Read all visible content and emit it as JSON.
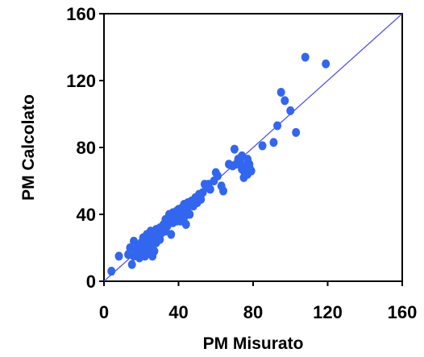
{
  "chart_data": {
    "type": "scatter",
    "title": "",
    "xlabel": "PM Misurato",
    "ylabel": "PM Calcolato",
    "xlim": [
      0,
      160
    ],
    "ylim": [
      0,
      160
    ],
    "x_ticks": [
      "0",
      "40",
      "80",
      "120",
      "160"
    ],
    "y_ticks": [
      "0",
      "40",
      "80",
      "120",
      "160"
    ],
    "x_tick_values": [
      0,
      40,
      80,
      120,
      160
    ],
    "y_tick_values": [
      0,
      40,
      80,
      120,
      160
    ],
    "grid": false,
    "legend": "none",
    "marker_color": "#3366ee",
    "reference_line": {
      "type": "y=x",
      "color": "#5555ee"
    },
    "points": [
      {
        "x": 4,
        "y": 6
      },
      {
        "x": 8,
        "y": 15
      },
      {
        "x": 13,
        "y": 16
      },
      {
        "x": 14,
        "y": 20
      },
      {
        "x": 15,
        "y": 10
      },
      {
        "x": 16,
        "y": 15
      },
      {
        "x": 16,
        "y": 24
      },
      {
        "x": 17,
        "y": 18
      },
      {
        "x": 18,
        "y": 20
      },
      {
        "x": 19,
        "y": 14
      },
      {
        "x": 20,
        "y": 17
      },
      {
        "x": 20,
        "y": 23
      },
      {
        "x": 21,
        "y": 20
      },
      {
        "x": 21,
        "y": 26
      },
      {
        "x": 22,
        "y": 15
      },
      {
        "x": 22,
        "y": 22
      },
      {
        "x": 23,
        "y": 18
      },
      {
        "x": 23,
        "y": 28
      },
      {
        "x": 24,
        "y": 24
      },
      {
        "x": 24,
        "y": 19
      },
      {
        "x": 25,
        "y": 21
      },
      {
        "x": 25,
        "y": 30
      },
      {
        "x": 26,
        "y": 15
      },
      {
        "x": 26,
        "y": 26
      },
      {
        "x": 27,
        "y": 18
      },
      {
        "x": 27,
        "y": 29
      },
      {
        "x": 28,
        "y": 23
      },
      {
        "x": 28,
        "y": 31
      },
      {
        "x": 29,
        "y": 27
      },
      {
        "x": 30,
        "y": 25
      },
      {
        "x": 30,
        "y": 32
      },
      {
        "x": 31,
        "y": 29
      },
      {
        "x": 32,
        "y": 34
      },
      {
        "x": 33,
        "y": 30
      },
      {
        "x": 33,
        "y": 37
      },
      {
        "x": 34,
        "y": 33
      },
      {
        "x": 35,
        "y": 36
      },
      {
        "x": 35,
        "y": 40
      },
      {
        "x": 36,
        "y": 28
      },
      {
        "x": 36,
        "y": 38
      },
      {
        "x": 37,
        "y": 35
      },
      {
        "x": 37,
        "y": 41
      },
      {
        "x": 38,
        "y": 39
      },
      {
        "x": 39,
        "y": 36
      },
      {
        "x": 39,
        "y": 42
      },
      {
        "x": 40,
        "y": 38
      },
      {
        "x": 40,
        "y": 43
      },
      {
        "x": 41,
        "y": 40
      },
      {
        "x": 41,
        "y": 36
      },
      {
        "x": 42,
        "y": 44
      },
      {
        "x": 42,
        "y": 41
      },
      {
        "x": 43,
        "y": 38
      },
      {
        "x": 43,
        "y": 46
      },
      {
        "x": 44,
        "y": 42
      },
      {
        "x": 44,
        "y": 34
      },
      {
        "x": 45,
        "y": 47
      },
      {
        "x": 45,
        "y": 44
      },
      {
        "x": 46,
        "y": 40
      },
      {
        "x": 47,
        "y": 48
      },
      {
        "x": 48,
        "y": 45
      },
      {
        "x": 49,
        "y": 50
      },
      {
        "x": 50,
        "y": 47
      },
      {
        "x": 51,
        "y": 52
      },
      {
        "x": 52,
        "y": 49
      },
      {
        "x": 53,
        "y": 53
      },
      {
        "x": 54,
        "y": 58
      },
      {
        "x": 55,
        "y": 56
      },
      {
        "x": 56,
        "y": 58
      },
      {
        "x": 57,
        "y": 55
      },
      {
        "x": 59,
        "y": 60
      },
      {
        "x": 60,
        "y": 65
      },
      {
        "x": 61,
        "y": 63
      },
      {
        "x": 63,
        "y": 57
      },
      {
        "x": 64,
        "y": 54
      },
      {
        "x": 67,
        "y": 70
      },
      {
        "x": 69,
        "y": 69
      },
      {
        "x": 70,
        "y": 79
      },
      {
        "x": 71,
        "y": 70
      },
      {
        "x": 72,
        "y": 73
      },
      {
        "x": 73,
        "y": 71
      },
      {
        "x": 74,
        "y": 75
      },
      {
        "x": 74,
        "y": 67
      },
      {
        "x": 75,
        "y": 62
      },
      {
        "x": 75,
        "y": 66
      },
      {
        "x": 76,
        "y": 69
      },
      {
        "x": 77,
        "y": 73
      },
      {
        "x": 77,
        "y": 64
      },
      {
        "x": 78,
        "y": 70
      },
      {
        "x": 78,
        "y": 68
      },
      {
        "x": 79,
        "y": 66
      },
      {
        "x": 85,
        "y": 81
      },
      {
        "x": 91,
        "y": 83
      },
      {
        "x": 93,
        "y": 93
      },
      {
        "x": 95,
        "y": 113
      },
      {
        "x": 97,
        "y": 108
      },
      {
        "x": 100,
        "y": 102
      },
      {
        "x": 103,
        "y": 89
      },
      {
        "x": 108,
        "y": 134
      },
      {
        "x": 119,
        "y": 130
      }
    ]
  }
}
